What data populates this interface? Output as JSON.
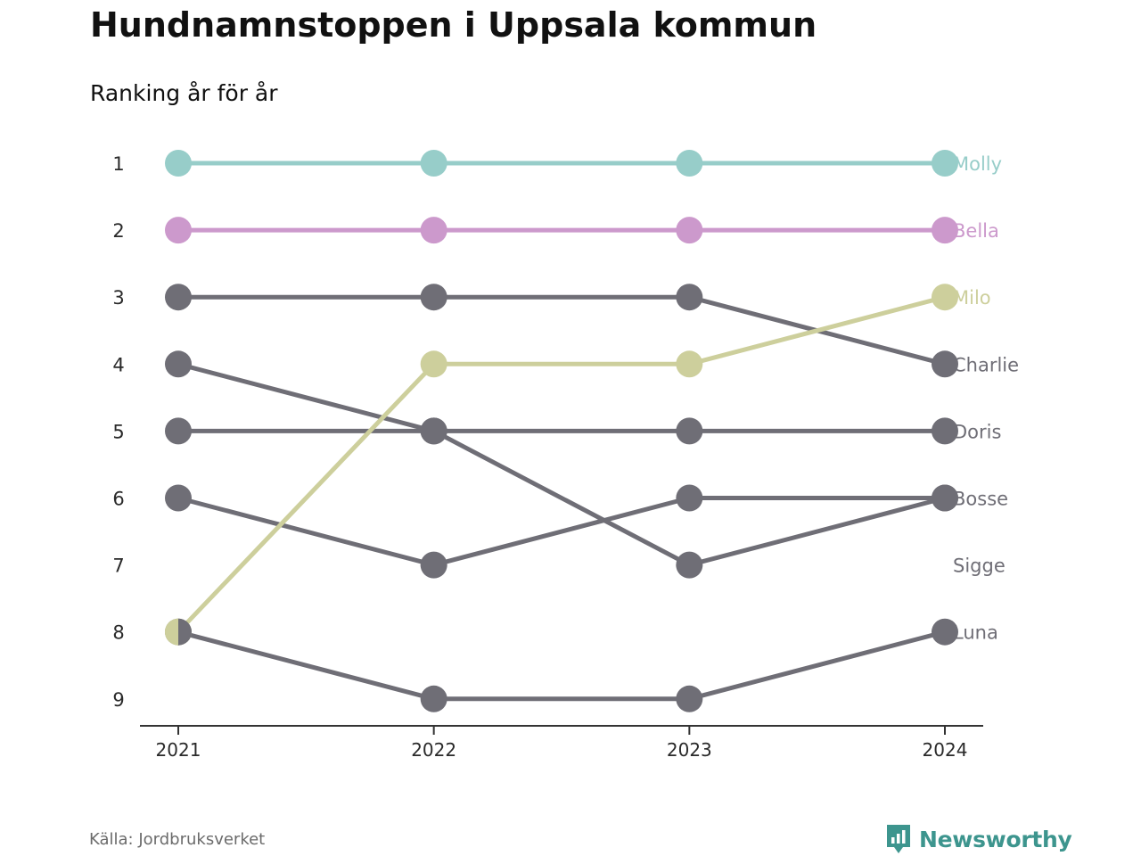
{
  "title": "Hundnamnstoppen i Uppsala kommun",
  "subtitle": "Ranking år för år",
  "source": "Källa: Jordbruksverket",
  "brand": {
    "name": "Newsworthy",
    "icon": "newsworthy-logo-icon",
    "color": "#3d958e"
  },
  "chart_data": {
    "type": "line",
    "subtype": "bump",
    "title": "Hundnamnstoppen i Uppsala kommun",
    "subtitle": "Ranking år för år",
    "x": [
      "2021",
      "2022",
      "2023",
      "2024"
    ],
    "y_ticks": [
      1,
      2,
      3,
      4,
      5,
      6,
      7,
      8,
      9
    ],
    "y_reversed": true,
    "ylim": [
      1,
      9
    ],
    "series": [
      {
        "name": "Molly",
        "color": "#97cdc9",
        "values": [
          1,
          1,
          1,
          1
        ]
      },
      {
        "name": "Bella",
        "color": "#cc99cc",
        "values": [
          2,
          2,
          2,
          2
        ]
      },
      {
        "name": "Charlie",
        "color": "#6f6e76",
        "values": [
          3,
          3,
          3,
          4
        ]
      },
      {
        "name": "Doris",
        "color": "#6f6e76",
        "values": [
          5,
          5,
          5,
          5
        ]
      },
      {
        "name": "Bosse",
        "color": "#6f6e76",
        "values": [
          6,
          7,
          6,
          6
        ]
      },
      {
        "name": "Sigge",
        "color": "#6f6e76",
        "values": [
          4,
          5,
          7,
          6
        ]
      },
      {
        "name": "Luna",
        "color": "#6f6e76",
        "values": [
          8,
          9,
          9,
          8
        ]
      },
      {
        "name": "Milo",
        "color": "#cdcf9c",
        "values": [
          8,
          4,
          4,
          3
        ]
      }
    ],
    "label_rows": [
      {
        "name": "Molly",
        "rank": 1,
        "color": "#97cdc9"
      },
      {
        "name": "Bella",
        "rank": 2,
        "color": "#cc99cc"
      },
      {
        "name": "Milo",
        "rank": 3,
        "color": "#cdcf9c"
      },
      {
        "name": "Charlie",
        "rank": 4,
        "color": "#6f6e76"
      },
      {
        "name": "Doris",
        "rank": 5,
        "color": "#6f6e76"
      },
      {
        "name": "Bosse",
        "rank": 6,
        "color": "#6f6e76"
      },
      {
        "name": "Sigge",
        "rank": 7,
        "color": "#6f6e76"
      },
      {
        "name": "Luna",
        "rank": 8,
        "color": "#6f6e76"
      }
    ],
    "grid": false,
    "legend": "direct labels at right"
  }
}
